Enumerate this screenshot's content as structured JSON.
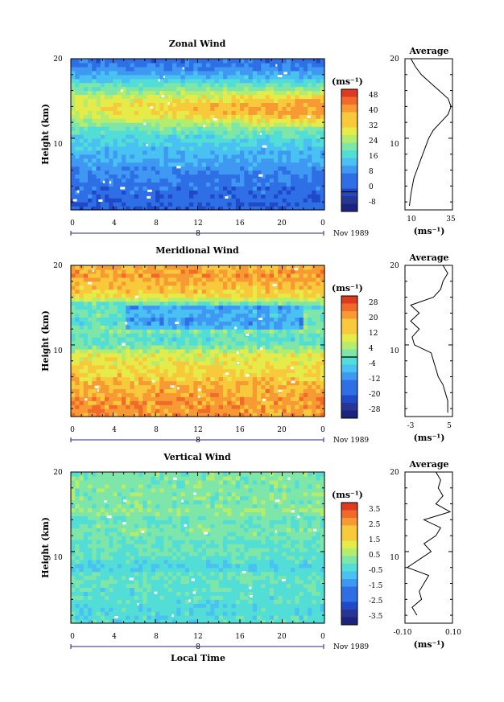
{
  "chart_data": [
    {
      "type": "heatmap",
      "title": "Zonal Wind",
      "ylabel": "Height (km)",
      "x_ticks": [
        "0",
        "4",
        "8",
        "12",
        "16",
        "20",
        "0"
      ],
      "y_ticks": [
        "20",
        "10"
      ],
      "ylim": [
        1,
        20
      ],
      "xlim": [
        0,
        24
      ],
      "date_marker": "8",
      "month_label": "Nov 1989",
      "colorbar_unit": "(ms⁻¹)",
      "colorbar_ticks": [
        "48",
        "40",
        "32",
        "24",
        "16",
        "8",
        "0",
        "-8"
      ],
      "colorbar_range": [
        -10,
        52
      ],
      "contour_level": 0,
      "profile": {
        "title": "Average",
        "x_ticks": [
          "10",
          "35"
        ],
        "xlim": [
          5,
          37
        ],
        "xlabel": "(ms⁻¹)",
        "heights": [
          1.5,
          3,
          4,
          5,
          6,
          7,
          8,
          9,
          10,
          11,
          12,
          13,
          14,
          15,
          16,
          17,
          18,
          19,
          20
        ],
        "values": [
          8,
          9,
          10,
          11,
          13,
          15,
          17,
          19,
          21,
          24,
          29,
          34,
          36,
          34,
          28,
          22,
          16,
          12,
          9
        ]
      }
    },
    {
      "type": "heatmap",
      "title": "Meridional Wind",
      "ylabel": "Height (km)",
      "x_ticks": [
        "0",
        "4",
        "8",
        "12",
        "16",
        "20",
        "0"
      ],
      "y_ticks": [
        "20",
        "10"
      ],
      "ylim": [
        1,
        20
      ],
      "xlim": [
        0,
        24
      ],
      "date_marker": "8",
      "month_label": "Nov 1989",
      "colorbar_unit": "(ms⁻¹)",
      "colorbar_ticks": [
        "28",
        "20",
        "12",
        "4",
        "-4",
        "-12",
        "-20",
        "-28"
      ],
      "colorbar_range": [
        -32,
        32
      ],
      "contour_level": 0,
      "profile": {
        "title": "Average",
        "x_ticks": [
          "-3",
          "5"
        ],
        "xlim": [
          -4,
          6
        ],
        "xlabel": "(ms⁻¹)",
        "heights": [
          1.5,
          3,
          4,
          5,
          6,
          7,
          8,
          9,
          10,
          11,
          12,
          13,
          14,
          15,
          16,
          17,
          18,
          19,
          20
        ],
        "values": [
          5,
          5,
          4.5,
          4,
          3,
          2.5,
          2,
          1.5,
          -2,
          -2.5,
          -1,
          -2.8,
          -1,
          -2.8,
          2,
          3.5,
          4,
          5,
          4
        ]
      }
    },
    {
      "type": "heatmap",
      "title": "Vertical Wind",
      "ylabel": "Height (km)",
      "xlabel": "Local Time",
      "x_ticks": [
        "0",
        "4",
        "8",
        "12",
        "16",
        "20",
        "0"
      ],
      "y_ticks": [
        "20",
        "10"
      ],
      "ylim": [
        1,
        20
      ],
      "xlim": [
        0,
        24
      ],
      "date_marker": "8",
      "month_label": "Nov 1989",
      "colorbar_unit": "(ms⁻¹)",
      "colorbar_ticks": [
        "3.5",
        "2.5",
        "1.5",
        "0.5",
        "-0.5",
        "-1.5",
        "-2.5",
        "-3.5"
      ],
      "colorbar_range": [
        -4,
        4
      ],
      "profile": {
        "title": "Average",
        "x_ticks": [
          "-0.10",
          "0.10"
        ],
        "xlim": [
          -0.1,
          0.1
        ],
        "xlabel": "(ms⁻¹)",
        "heights": [
          2,
          3,
          4,
          5,
          6,
          7,
          8,
          9,
          10,
          11,
          12,
          13,
          14,
          15,
          16,
          17,
          18,
          19,
          20
        ],
        "values": [
          -0.05,
          -0.07,
          -0.03,
          -0.04,
          -0.02,
          0.0,
          -0.09,
          -0.04,
          0.01,
          -0.02,
          0.03,
          0.05,
          -0.02,
          0.09,
          0.03,
          0.06,
          0.04,
          0.05,
          0.03
        ]
      }
    }
  ]
}
